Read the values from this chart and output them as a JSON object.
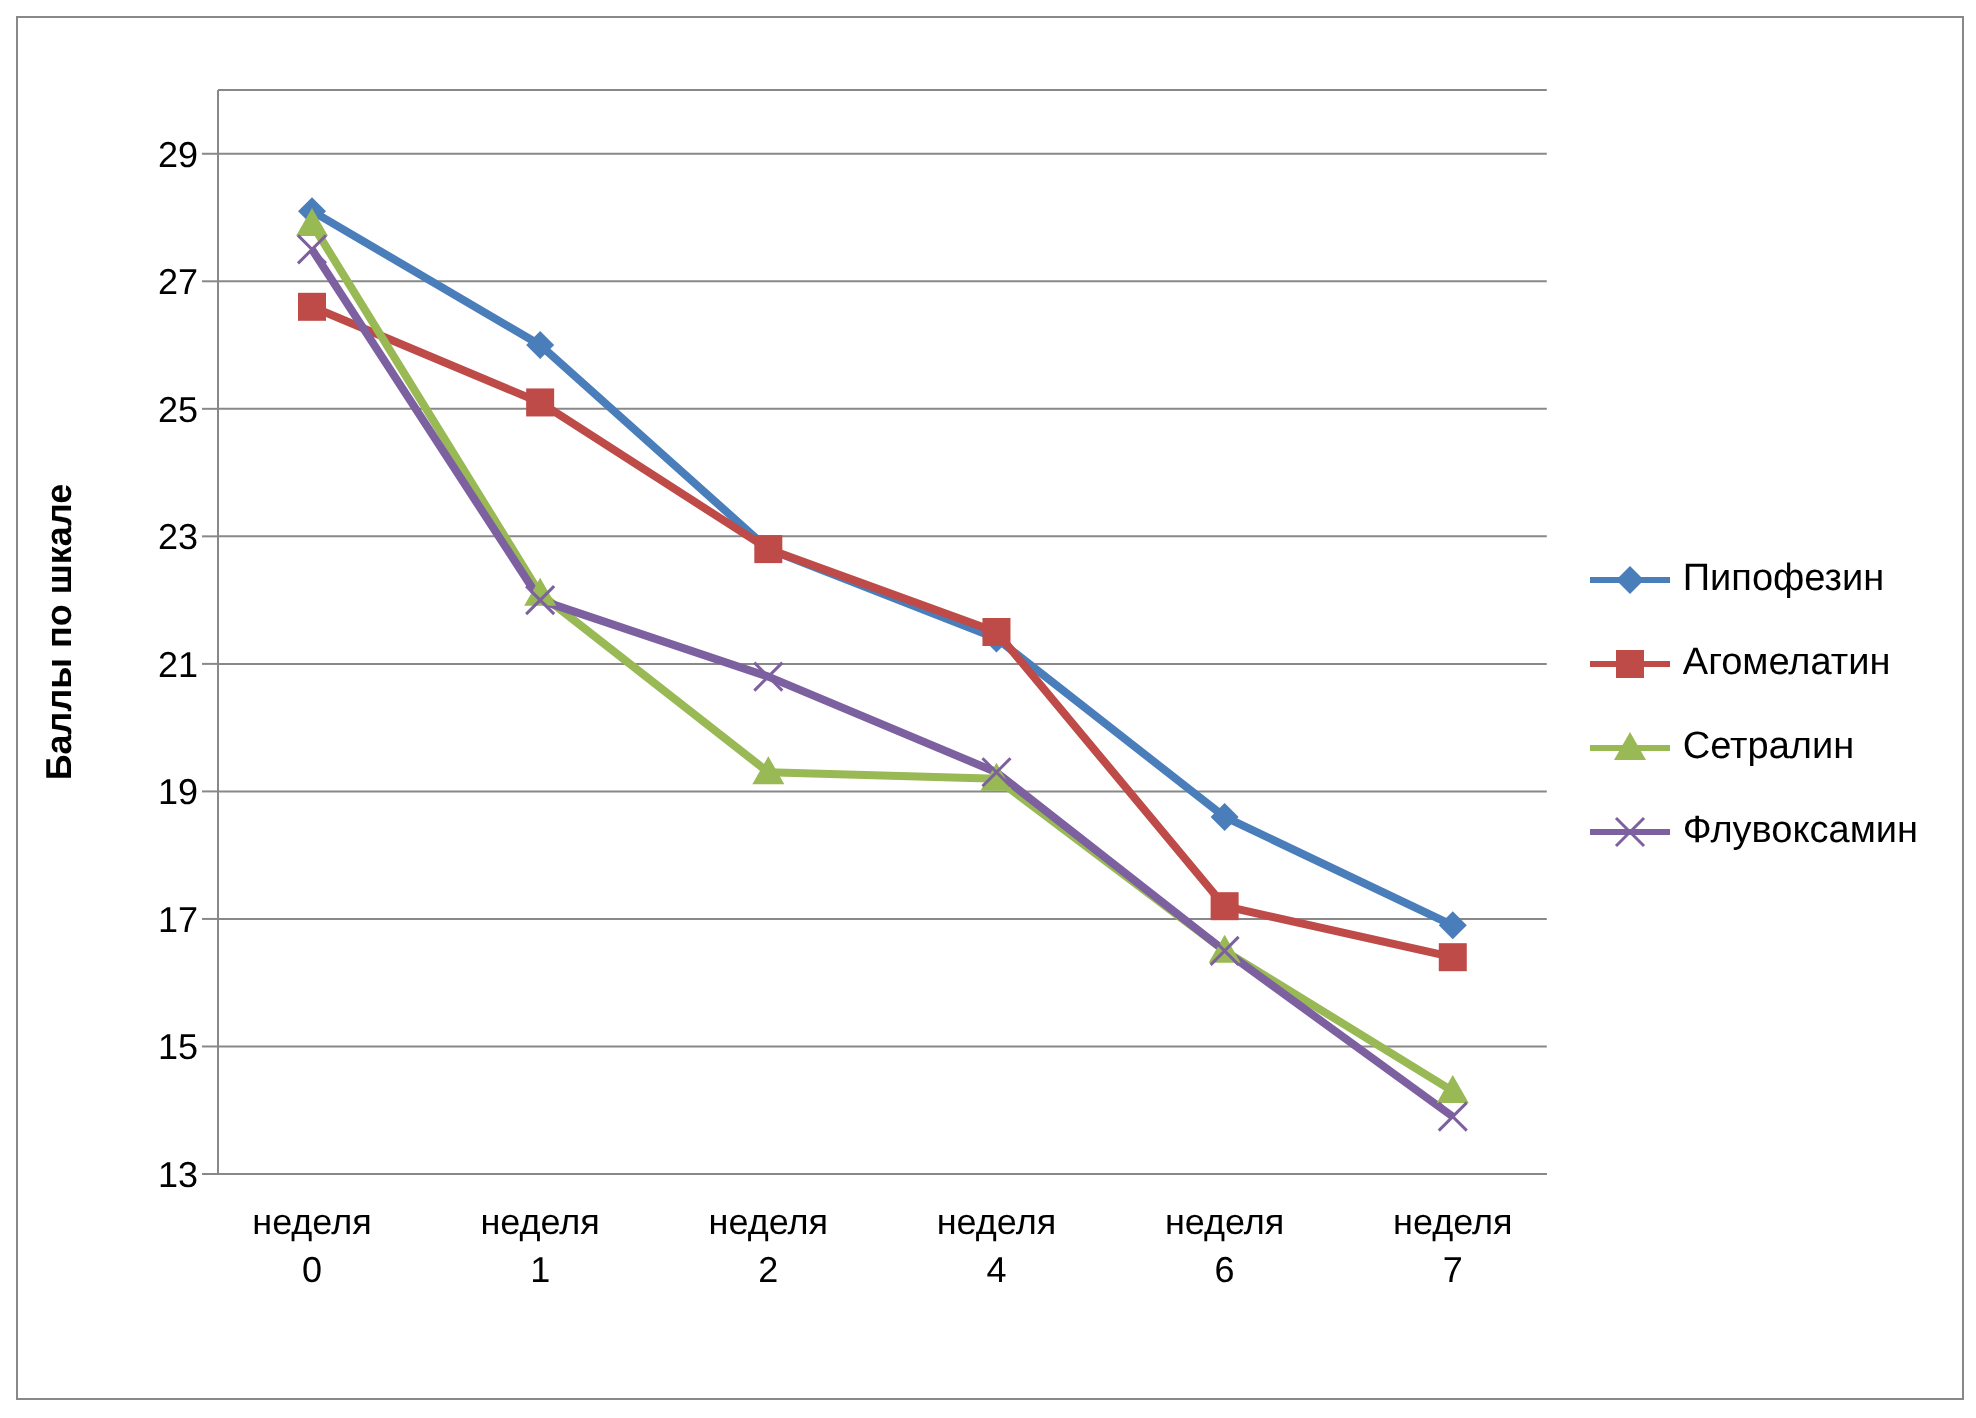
{
  "chart_data": {
    "type": "line",
    "ylabel": "Баллы по шкале",
    "categories": [
      "неделя 0",
      "неделя 1",
      "неделя 2",
      "неделя 4",
      "неделя 6",
      "неделя 7"
    ],
    "series": [
      {
        "name": "Пипофезин",
        "color": "#4a7ebb",
        "marker": "diamond",
        "values": [
          28.1,
          26.0,
          22.8,
          21.4,
          18.6,
          16.9
        ]
      },
      {
        "name": "Агомелатин",
        "color": "#be4b48",
        "marker": "square",
        "values": [
          26.6,
          25.1,
          22.8,
          21.5,
          17.2,
          16.4
        ]
      },
      {
        "name": "Сетралин",
        "color": "#98b954",
        "marker": "triangle",
        "values": [
          27.9,
          22.1,
          19.3,
          19.2,
          16.5,
          14.3
        ]
      },
      {
        "name": "Флувоксамин",
        "color": "#7d60a0",
        "marker": "cross",
        "values": [
          27.5,
          22.0,
          20.8,
          19.3,
          16.5,
          13.9
        ]
      }
    ],
    "ylim": [
      13,
      30
    ],
    "yticks": [
      13,
      15,
      17,
      19,
      21,
      23,
      25,
      27,
      29
    ],
    "grid": "y",
    "legend": "right"
  }
}
